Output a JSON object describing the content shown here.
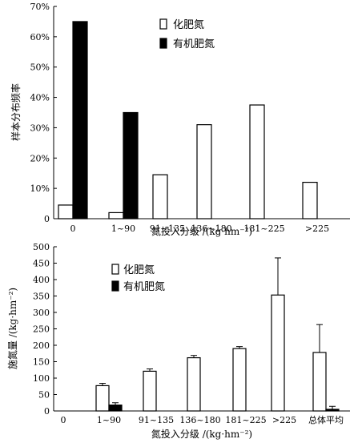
{
  "chart_data": [
    {
      "type": "bar",
      "ylabel": "样本分布频率",
      "xlabel": "氮投入分级 /(kg·hm⁻²)",
      "categories": [
        "0",
        "1~90",
        "91~135",
        "136~180",
        "181~225",
        ">225"
      ],
      "ylim": [
        0,
        70
      ],
      "yticks": [
        "0",
        "10%",
        "20%",
        "30%",
        "40%",
        "50%",
        "60%",
        "70%"
      ],
      "series": [
        {
          "name": "化肥氮",
          "fill": "#ffffff",
          "values": [
            4.5,
            2,
            14.5,
            31,
            37.5,
            12
          ]
        },
        {
          "name": "有机肥氮",
          "fill": "#000000",
          "values": [
            65,
            35,
            0,
            0,
            0,
            0
          ]
        }
      ],
      "legend_position": "top-left"
    },
    {
      "type": "bar",
      "ylabel": "施氮量 /(kg·hm⁻²)",
      "xlabel": "氮投入分级 /(kg·hm⁻²)",
      "categories": [
        "0",
        "1~90",
        "91~135",
        "136~180",
        "181~225",
        ">225",
        "总体平均"
      ],
      "ylim": [
        0,
        500
      ],
      "yticks": [
        "0",
        "50",
        "100",
        "150",
        "200",
        "250",
        "300",
        "350",
        "400",
        "450",
        "500"
      ],
      "series": [
        {
          "name": "化肥氮",
          "fill": "#ffffff",
          "values": [
            0,
            77,
            121,
            162,
            190,
            353,
            178
          ],
          "errors": [
            0,
            7,
            7,
            7,
            6,
            113,
            85
          ]
        },
        {
          "name": "有机肥氮",
          "fill": "#000000",
          "values": [
            0,
            18,
            0,
            0,
            0,
            0,
            5
          ],
          "errors": [
            0,
            7,
            0,
            0,
            0,
            0,
            9
          ]
        }
      ],
      "legend_position": "top-left"
    }
  ]
}
